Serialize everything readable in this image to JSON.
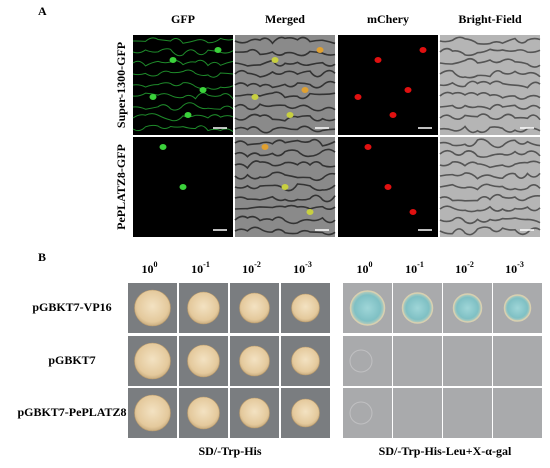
{
  "panel_a": {
    "label": "A",
    "columns": [
      "GFP",
      "Merged",
      "mChery",
      "Bright-Field"
    ],
    "rows": [
      "Super-1300-GFP",
      "PePLATZ8-GFP"
    ]
  },
  "panel_b": {
    "label": "B",
    "dilutions": [
      {
        "base": "10",
        "exponent": "0"
      },
      {
        "base": "10",
        "exponent": "-1"
      },
      {
        "base": "10",
        "exponent": "-2"
      },
      {
        "base": "10",
        "exponent": "-3"
      }
    ],
    "rows": [
      "pGBKT7-VP16",
      "pGBKT7",
      "pGBKT7-PePLATZ8"
    ],
    "media": [
      "SD/-Trp-His",
      "SD/-Trp-His-Leu+X-α-gal"
    ]
  }
}
